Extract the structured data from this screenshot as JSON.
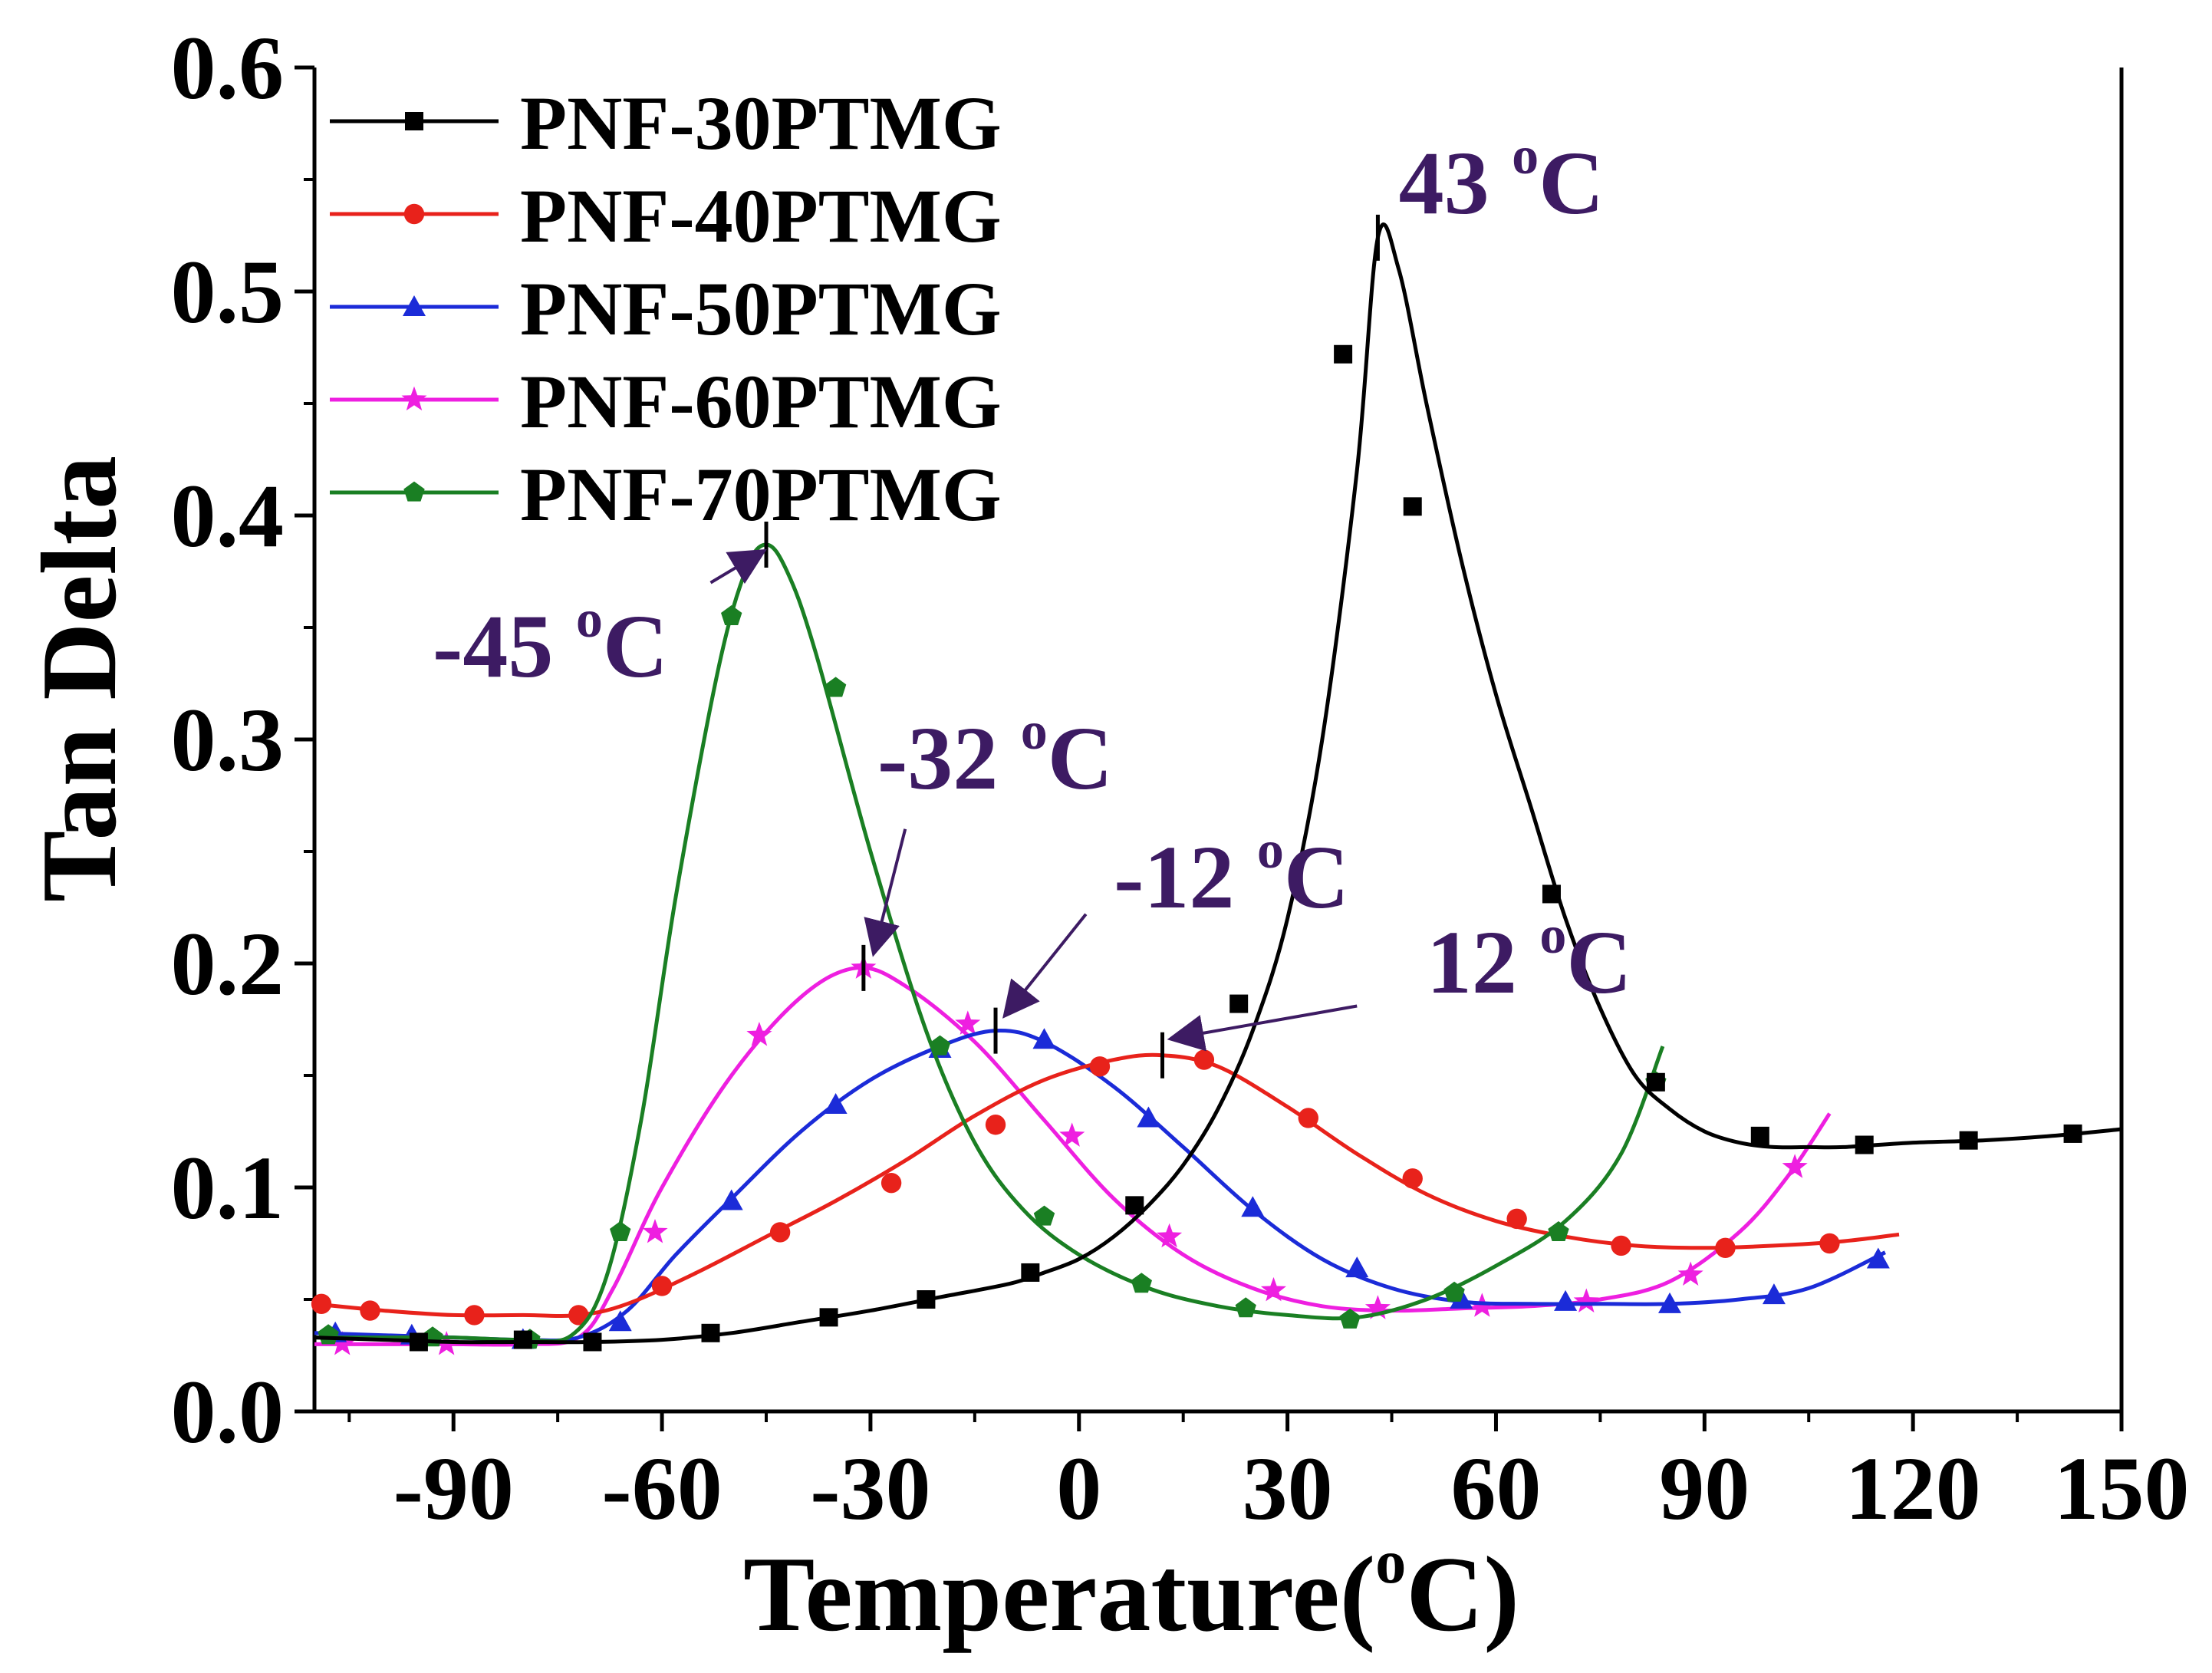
{
  "chart_data": {
    "type": "line",
    "title": "",
    "xlabel": "Temperature(",
    "xlabel_sup": "o",
    "xlabel_tail": "C)",
    "ylabel": "Tan  Delta",
    "xlim": [
      -110,
      150
    ],
    "ylim": [
      0.0,
      0.6
    ],
    "x_ticks": [
      -90,
      -60,
      -30,
      0,
      30,
      60,
      90,
      120,
      150
    ],
    "y_ticks": [
      0.0,
      0.1,
      0.2,
      0.3,
      0.4,
      0.5,
      0.6
    ],
    "x_tick_labels": [
      "-90",
      "-60",
      "-30",
      "0",
      "30",
      "60",
      "90",
      "120",
      "150"
    ],
    "y_tick_labels": [
      "0.0",
      "0.1",
      "0.2",
      "0.3",
      "0.4",
      "0.5",
      "0.6"
    ],
    "grid": false,
    "legend_position": "top-left",
    "series": [
      {
        "name": "PNF-30PTMG",
        "color": "#000000",
        "marker": "square",
        "x": [
          -110,
          -100,
          -90,
          -80,
          -70,
          -60,
          -50,
          -40,
          -30,
          -20,
          -10,
          -5,
          0,
          5,
          10,
          15,
          20,
          25,
          30,
          35,
          40,
          43,
          46,
          50,
          55,
          60,
          65,
          70,
          75,
          80,
          85,
          90,
          95,
          100,
          105,
          110,
          120,
          130,
          140,
          150
        ],
        "y": [
          0.033,
          0.032,
          0.031,
          0.031,
          0.031,
          0.032,
          0.035,
          0.04,
          0.045,
          0.051,
          0.057,
          0.062,
          0.068,
          0.078,
          0.092,
          0.11,
          0.135,
          0.17,
          0.22,
          0.3,
          0.42,
          0.524,
          0.51,
          0.45,
          0.38,
          0.32,
          0.27,
          0.22,
          0.18,
          0.15,
          0.135,
          0.125,
          0.12,
          0.118,
          0.118,
          0.118,
          0.12,
          0.121,
          0.123,
          0.126
        ],
        "marker_x": [
          -95,
          -80,
          -70,
          -53,
          -36,
          -22,
          -7,
          8,
          23,
          38,
          48,
          68,
          83,
          98,
          113,
          128,
          143
        ],
        "marker_y": [
          0.031,
          0.032,
          0.031,
          0.035,
          0.042,
          0.05,
          0.062,
          0.092,
          0.182,
          0.472,
          0.404,
          0.231,
          0.147,
          0.123,
          0.119,
          0.121,
          0.124
        ]
      },
      {
        "name": "PNF-40PTMG",
        "color": "#e8221b",
        "marker": "circle",
        "x": [
          -110,
          -100,
          -90,
          -80,
          -72,
          -65,
          -55,
          -45,
          -35,
          -25,
          -15,
          -5,
          5,
          12,
          20,
          30,
          40,
          50,
          60,
          70,
          80,
          90,
          100,
          110,
          118
        ],
        "y": [
          0.048,
          0.045,
          0.043,
          0.043,
          0.043,
          0.048,
          0.062,
          0.078,
          0.094,
          0.112,
          0.132,
          0.148,
          0.157,
          0.159,
          0.154,
          0.136,
          0.115,
          0.097,
          0.085,
          0.078,
          0.074,
          0.073,
          0.074,
          0.076,
          0.079
        ],
        "marker_x": [
          -109,
          -102,
          -87,
          -72,
          -60,
          -43,
          -27,
          -12,
          3,
          18,
          33,
          48,
          63,
          78,
          93,
          108
        ],
        "marker_y": [
          0.048,
          0.045,
          0.043,
          0.043,
          0.056,
          0.08,
          0.102,
          0.128,
          0.154,
          0.157,
          0.131,
          0.104,
          0.086,
          0.074,
          0.073,
          0.075
        ]
      },
      {
        "name": "PNF-50PTMG",
        "color": "#1b2bd8",
        "marker": "triangle",
        "x": [
          -110,
          -100,
          -90,
          -80,
          -72,
          -65,
          -58,
          -50,
          -40,
          -30,
          -20,
          -12,
          -5,
          5,
          15,
          25,
          35,
          45,
          55,
          65,
          75,
          85,
          95,
          105,
          116
        ],
        "y": [
          0.035,
          0.034,
          0.033,
          0.032,
          0.033,
          0.045,
          0.07,
          0.095,
          0.125,
          0.148,
          0.163,
          0.17,
          0.165,
          0.145,
          0.118,
          0.09,
          0.068,
          0.055,
          0.049,
          0.048,
          0.048,
          0.048,
          0.05,
          0.055,
          0.071
        ],
        "marker_x": [
          -107,
          -96,
          -80,
          -66,
          -50,
          -35,
          -20,
          -5,
          10,
          25,
          40,
          55,
          70,
          85,
          100,
          115
        ],
        "marker_y": [
          0.035,
          0.034,
          0.032,
          0.04,
          0.094,
          0.137,
          0.162,
          0.166,
          0.131,
          0.091,
          0.064,
          0.05,
          0.049,
          0.048,
          0.052,
          0.068
        ]
      },
      {
        "name": "PNF-60PTMG",
        "color": "#ee1fe0",
        "marker": "star",
        "x": [
          -110,
          -100,
          -90,
          -80,
          -72,
          -67,
          -60,
          -50,
          -40,
          -32,
          -25,
          -15,
          -5,
          5,
          15,
          25,
          35,
          45,
          55,
          65,
          75,
          85,
          95,
          102,
          108
        ],
        "y": [
          0.03,
          0.03,
          0.03,
          0.03,
          0.033,
          0.055,
          0.1,
          0.15,
          0.185,
          0.198,
          0.19,
          0.165,
          0.13,
          0.095,
          0.07,
          0.055,
          0.047,
          0.045,
          0.046,
          0.047,
          0.05,
          0.058,
          0.08,
          0.105,
          0.133
        ],
        "marker_x": [
          -106,
          -91,
          -61,
          -46,
          -31,
          -16,
          -1,
          13,
          28,
          43,
          58,
          73,
          88,
          103
        ],
        "marker_y": [
          0.03,
          0.03,
          0.08,
          0.168,
          0.198,
          0.173,
          0.123,
          0.078,
          0.054,
          0.046,
          0.047,
          0.049,
          0.061,
          0.109
        ]
      },
      {
        "name": "PNF-70PTMG",
        "color": "#1a7f23",
        "marker": "pentagon",
        "x": [
          -110,
          -100,
          -90,
          -80,
          -73,
          -68,
          -63,
          -58,
          -52,
          -48,
          -45,
          -42,
          -38,
          -30,
          -22,
          -15,
          -8,
          0,
          10,
          20,
          30,
          40,
          50,
          60,
          70,
          78,
          84
        ],
        "y": [
          0.033,
          0.033,
          0.033,
          0.032,
          0.034,
          0.06,
          0.13,
          0.23,
          0.33,
          0.375,
          0.387,
          0.375,
          0.34,
          0.25,
          0.17,
          0.12,
          0.09,
          0.07,
          0.055,
          0.047,
          0.043,
          0.042,
          0.05,
          0.065,
          0.085,
          0.115,
          0.163
        ],
        "marker_x": [
          -108,
          -93,
          -79,
          -66,
          -50,
          -35,
          -20,
          -5,
          9,
          24,
          39,
          54,
          69,
          83
        ],
        "marker_y": [
          0.034,
          0.033,
          0.032,
          0.08,
          0.355,
          0.323,
          0.163,
          0.087,
          0.057,
          0.046,
          0.041,
          0.053,
          0.08,
          0.147
        ]
      }
    ],
    "annotations": [
      {
        "label": "43 ",
        "sup": "o",
        "tail": "C",
        "peak_x": 43,
        "peak_y": 0.524,
        "label_x": 46,
        "label_y": 0.535,
        "arrow": false
      },
      {
        "label": "-45 ",
        "sup": "o",
        "tail": "C",
        "peak_x": -45,
        "peak_y": 0.387,
        "label_x": -93,
        "label_y": 0.328,
        "arrow": true,
        "arrow_from_x": -53,
        "arrow_from_y": 0.37
      },
      {
        "label": "-32 ",
        "sup": "o",
        "tail": "C",
        "peak_x": -31,
        "peak_y": 0.198,
        "label_x": -29,
        "label_y": 0.278,
        "arrow": true,
        "arrow_from_x": -25,
        "arrow_from_y": 0.26
      },
      {
        "label": "-12 ",
        "sup": "o",
        "tail": "C",
        "peak_x": -12,
        "peak_y": 0.17,
        "label_x": 5,
        "label_y": 0.225,
        "arrow": true,
        "arrow_from_x": 1,
        "arrow_from_y": 0.222
      },
      {
        "label": "12 ",
        "sup": "o",
        "tail": "C",
        "peak_x": 12,
        "peak_y": 0.159,
        "label_x": 50,
        "label_y": 0.187,
        "arrow": true,
        "arrow_from_x": 40,
        "arrow_from_y": 0.181
      }
    ]
  }
}
